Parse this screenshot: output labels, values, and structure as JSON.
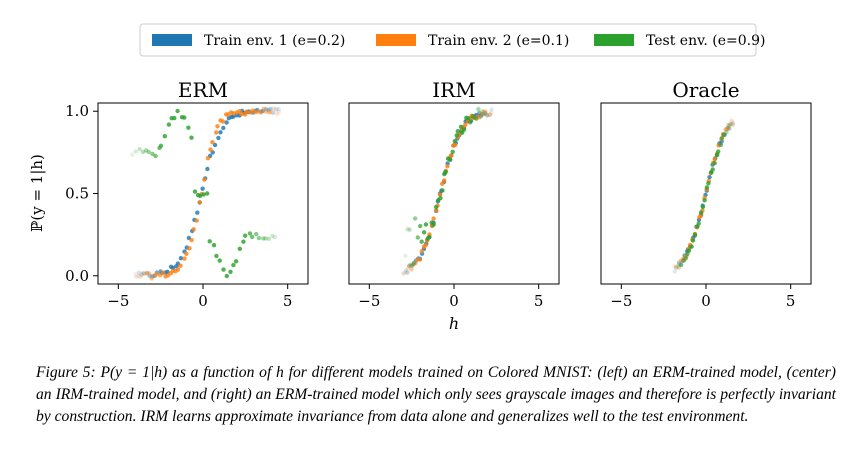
{
  "figure": {
    "legend": [
      {
        "label": "Train env. 1 (e=0.2)",
        "color": "#1f77b4"
      },
      {
        "label": "Train env. 2 (e=0.1)",
        "color": "#ff7f0e"
      },
      {
        "label": "Test env. (e=0.9)",
        "color": "#2ca02c"
      }
    ],
    "xlabel": "h",
    "ylabel": "ℙ(y = 1|h)"
  },
  "chart_data": [
    {
      "type": "scatter",
      "title": "ERM",
      "xlim": [
        -6.2,
        6.2
      ],
      "ylim": [
        -0.05,
        1.05
      ],
      "xticks": [
        -5,
        0,
        5
      ],
      "yticks": [
        0.0,
        0.5,
        1.0
      ],
      "ytick_labels": [
        "0.0",
        "0.5",
        "1.0"
      ],
      "series": [
        {
          "name": "Train env. 1 (e=0.2)",
          "color": "#1f77b4",
          "x_range": [
            -4.0,
            4.6
          ],
          "n": 55,
          "curve": "sigmoid",
          "slope": 1.1,
          "center": -0.1
        },
        {
          "name": "Train env. 2 (e=0.1)",
          "color": "#ff7f0e",
          "x_range": [
            -4.0,
            4.6
          ],
          "n": 55,
          "curve": "sigmoid",
          "slope": 1.4,
          "center": -0.1
        },
        {
          "name": "Test env. (e=0.9)",
          "color": "#2ca02c",
          "x_range": [
            -4.2,
            4.4
          ],
          "n": 45,
          "curve": "bump",
          "center": -0.1
        }
      ]
    },
    {
      "type": "scatter",
      "title": "IRM",
      "xlim": [
        -6.2,
        6.2
      ],
      "ylim": [
        -0.05,
        1.05
      ],
      "xticks": [
        -5,
        0,
        5
      ],
      "series": [
        {
          "name": "Train env. 1 (e=0.2)",
          "color": "#1f77b4",
          "x_range": [
            -3.0,
            2.3
          ],
          "n": 45,
          "curve": "sigmoid",
          "slope": 1.05,
          "center": -0.8
        },
        {
          "name": "Train env. 2 (e=0.1)",
          "color": "#ff7f0e",
          "x_range": [
            -3.0,
            2.3
          ],
          "n": 45,
          "curve": "sigmoid",
          "slope": 1.05,
          "center": -0.8
        },
        {
          "name": "Test env. (e=0.9)",
          "color": "#2ca02c",
          "x_range": [
            -2.9,
            1.9
          ],
          "n": 40,
          "curve": "sigmoid_spread",
          "slope": 1.05,
          "center": -0.8
        }
      ]
    },
    {
      "type": "scatter",
      "title": "Oracle",
      "xlim": [
        -6.2,
        6.2
      ],
      "ylim": [
        -0.05,
        1.05
      ],
      "xticks": [
        -5,
        0,
        5
      ],
      "series": [
        {
          "name": "Train env. 1 (e=0.2)",
          "color": "#1f77b4",
          "x_range": [
            -1.9,
            1.7
          ],
          "n": 30,
          "curve": "sigmoid",
          "slope": 1.05,
          "center": 0.0
        },
        {
          "name": "Train env. 2 (e=0.1)",
          "color": "#ff7f0e",
          "x_range": [
            -1.9,
            1.7
          ],
          "n": 30,
          "curve": "sigmoid",
          "slope": 1.05,
          "center": 0.0
        },
        {
          "name": "Test env. (e=0.9)",
          "color": "#2ca02c",
          "x_range": [
            -1.7,
            1.5
          ],
          "n": 28,
          "curve": "sigmoid",
          "slope": 1.05,
          "center": 0.0
        }
      ]
    }
  ],
  "caption": {
    "label": "Figure 5:",
    "text": "P(y = 1|h) as a function of h for different models trained on Colored MNIST: (left) an ERM-trained model, (center) an IRM-trained model, and (right) an ERM-trained model which only sees grayscale images and therefore is perfectly invariant by construction. IRM learns approximate invariance from data alone and generalizes well to the test environment."
  }
}
